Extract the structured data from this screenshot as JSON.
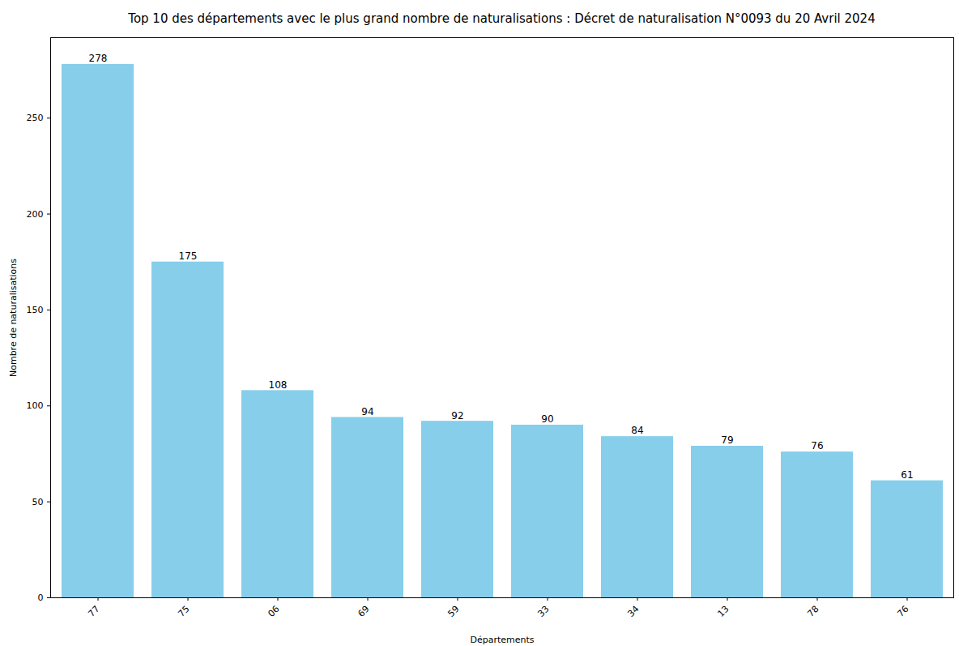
{
  "chart_data": {
    "type": "bar",
    "title": "Top 10 des départements avec le plus grand nombre de naturalisations : Décret de naturalisation N°0093 du 20 Avril 2024",
    "x_label": "Départements",
    "y_label": "Nombre de naturalisations",
    "categories": [
      "77",
      "75",
      "06",
      "69",
      "59",
      "33",
      "34",
      "13",
      "78",
      "76"
    ],
    "values": [
      278,
      175,
      108,
      94,
      92,
      90,
      84,
      79,
      76,
      61
    ],
    "color": "#87ceeb",
    "ylim": [
      0,
      291.9
    ],
    "yticks": [
      0,
      50,
      100,
      150,
      200,
      250
    ],
    "grid": false,
    "data_labels": true
  }
}
